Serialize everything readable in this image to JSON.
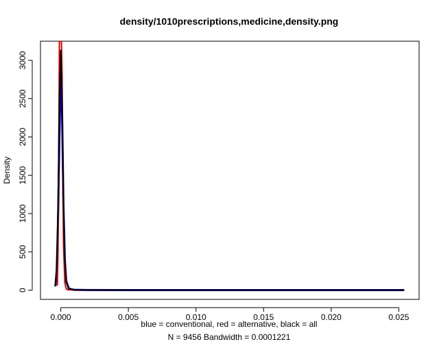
{
  "chart_data": {
    "type": "line",
    "title": "density/1010prescriptions,medicine,density.png",
    "xlabel": "blue = conventional, red = alternative, black = all",
    "xlabel_line2": "N = 9456   Bandwidth = 0.0001221",
    "ylabel": "Density",
    "xlim": [
      -0.0015,
      0.0265
    ],
    "ylim": [
      -120,
      3250
    ],
    "xticks": [
      0.0,
      0.005,
      0.01,
      0.015,
      0.02,
      0.025
    ],
    "xtick_labels": [
      "0.000",
      "0.005",
      "0.010",
      "0.015",
      "0.020",
      "0.025"
    ],
    "yticks": [
      0,
      500,
      1000,
      1500,
      2000,
      2500,
      3000
    ],
    "ytick_labels": [
      "0",
      "500",
      "1000",
      "1500",
      "2000",
      "2500",
      "3000"
    ],
    "grid": false,
    "legend": "none",
    "series": [
      {
        "name": "conventional",
        "color": "#0000cc",
        "x": [
          -0.0004,
          -0.0003,
          -0.0002,
          -0.0001,
          0.0,
          0.0001,
          0.0002,
          0.0003,
          0.0004,
          0.0006,
          0.001,
          0.002,
          0.005,
          0.01,
          0.015,
          0.02,
          0.0254
        ],
        "y": [
          50,
          250,
          900,
          2000,
          2800,
          2300,
          1100,
          400,
          120,
          20,
          4,
          2,
          1,
          1,
          1,
          1,
          1
        ]
      },
      {
        "name": "alternative",
        "color": "#dd0000",
        "x": [
          -0.00025,
          -0.0002,
          -0.00015,
          -0.0001,
          -5e-05,
          0.0,
          5e-05,
          0.0001,
          0.00015,
          0.0002,
          0.0003,
          0.0004,
          0.0005,
          0.001,
          0.005,
          0.01,
          0.0155
        ],
        "y": [
          60,
          500,
          1800,
          3250,
          3250,
          3250,
          3250,
          2800,
          1500,
          600,
          100,
          20,
          5,
          2,
          1,
          1,
          1
        ]
      },
      {
        "name": "all",
        "color": "#000000",
        "x": [
          -0.0004,
          -0.0003,
          -0.0002,
          -0.0001,
          0.0,
          0.0001,
          0.0002,
          0.0003,
          0.0004,
          0.0006,
          0.001,
          0.002,
          0.005,
          0.01,
          0.015,
          0.02,
          0.0254
        ],
        "y": [
          50,
          300,
          1100,
          2500,
          3130,
          2500,
          1100,
          400,
          120,
          20,
          4,
          2,
          1,
          1,
          1,
          1,
          1
        ]
      }
    ]
  }
}
